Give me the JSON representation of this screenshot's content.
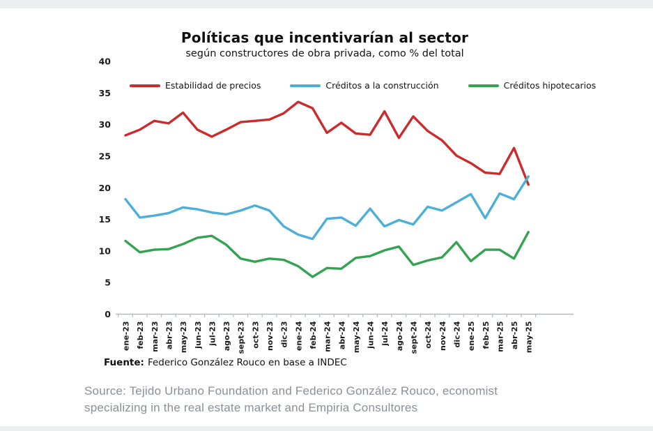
{
  "chart": {
    "title": "Políticas que incentivarían al sector",
    "subtitle": "según constructores de obra privada, como % del total",
    "source_label": "Fuente:",
    "source_text": "Federico González Rouco en base a INDEC"
  },
  "caption": {
    "text": "Source: Tejido Urbano Foundation and Federico González Rouco, economist specializing in the real estate market and Empiria Consultores"
  },
  "chart_data": {
    "type": "line",
    "title": "Políticas que incentivarían al sector",
    "subtitle": "según constructores de obra privada, como % del total",
    "xlabel": "",
    "ylabel": "% del total",
    "ylim": [
      0,
      40
    ],
    "yticks": [
      0,
      5,
      10,
      15,
      20,
      25,
      30,
      35,
      40
    ],
    "grid": false,
    "legend_position": "top",
    "source": "Fuente: Federico González Rouco en base a INDEC",
    "categories": [
      "ene-23",
      "feb-23",
      "mar-23",
      "abr-23",
      "may-23",
      "jun-23",
      "jul-23",
      "ago-23",
      "sept-23",
      "oct-23",
      "nov-23",
      "dic-23",
      "ene-24",
      "feb-24",
      "mar-24",
      "abr-24",
      "may-24",
      "jun-24",
      "jul-24",
      "ago-24",
      "sept-24",
      "oct-24",
      "nov-24",
      "dic-24",
      "ene-25",
      "feb-25",
      "mar-25",
      "abr-25",
      "may-25"
    ],
    "series": [
      {
        "name": "Estabilidad de precios",
        "color": "#cb2b2b",
        "values": [
          28.3,
          29.2,
          30.6,
          30.2,
          31.9,
          29.2,
          28.1,
          29.2,
          30.4,
          30.6,
          30.8,
          31.8,
          33.6,
          32.6,
          28.7,
          30.3,
          28.6,
          28.4,
          32.1,
          27.9,
          31.3,
          29.0,
          27.5,
          25.1,
          23.9,
          22.4,
          22.2,
          26.3,
          20.5
        ]
      },
      {
        "name": "Créditos a la construcción",
        "color": "#4bafd7",
        "values": [
          18.2,
          15.3,
          15.6,
          16.0,
          16.9,
          16.6,
          16.1,
          15.8,
          16.4,
          17.2,
          16.4,
          13.9,
          12.6,
          11.9,
          15.1,
          15.3,
          14.0,
          16.7,
          13.9,
          14.9,
          14.2,
          17.0,
          16.4,
          17.7,
          19.0,
          15.2,
          19.1,
          18.2,
          21.8
        ]
      },
      {
        "name": "Créditos hipotecarios",
        "color": "#33a352",
        "values": [
          11.6,
          9.8,
          10.2,
          10.3,
          11.1,
          12.1,
          12.4,
          11.0,
          8.8,
          8.3,
          8.8,
          8.6,
          7.6,
          5.9,
          7.3,
          7.2,
          8.9,
          9.2,
          10.1,
          10.7,
          7.8,
          8.5,
          9.0,
          11.4,
          8.4,
          10.2,
          10.2,
          8.8,
          13.0
        ]
      }
    ]
  }
}
